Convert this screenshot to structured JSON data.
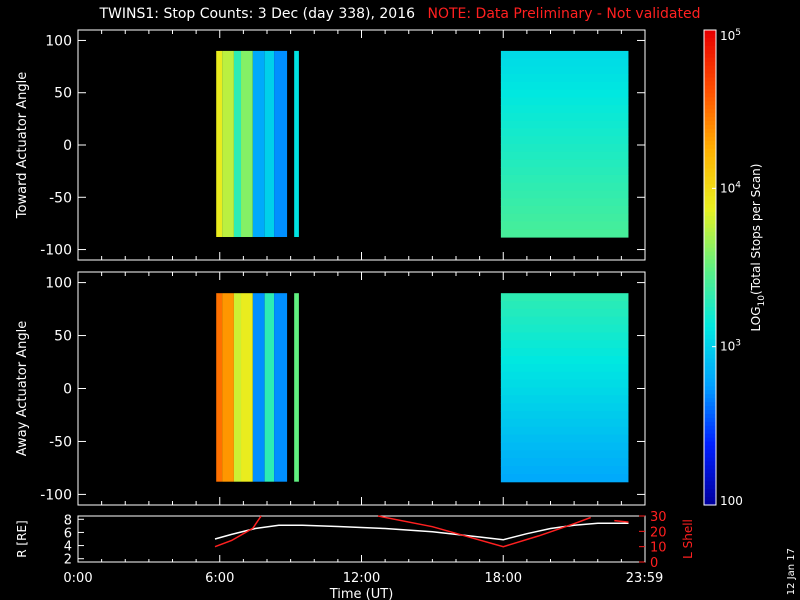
{
  "header": {
    "title": "TWINS1: Stop Counts:  3 Dec (day 338), 2016",
    "note": "NOTE: Data Preliminary - Not validated",
    "note_color": "#ff2020"
  },
  "footer": {
    "date_stamp": "12 Jan 17"
  },
  "chart_data": [
    {
      "type": "heatmap",
      "panel": "toward",
      "ylabel": "Toward Actuator Angle",
      "yticks": [
        100,
        50,
        0,
        -50,
        -100
      ],
      "ylim": [
        -110,
        110
      ],
      "xlim": [
        0,
        24
      ],
      "data_y_range": [
        -88,
        90
      ],
      "segments_utc_hours": [
        [
          5.85,
          8.85
        ],
        [
          9.15,
          9.35
        ],
        [
          17.9,
          23.3
        ]
      ],
      "columns_log10": [
        {
          "x": [
            5.85,
            6.1
          ],
          "v": 3.9
        },
        {
          "x": [
            6.1,
            6.6
          ],
          "v": 3.75
        },
        {
          "x": [
            6.6,
            6.9
          ],
          "v": 3.3
        },
        {
          "x": [
            6.9,
            7.4
          ],
          "v": 3.6
        },
        {
          "x": [
            7.4,
            7.9
          ],
          "v": 2.8
        },
        {
          "x": [
            7.9,
            8.3
          ],
          "v": 3.0
        },
        {
          "x": [
            8.3,
            8.85
          ],
          "v": 2.7
        },
        {
          "x": [
            9.15,
            9.35
          ],
          "v": 3.1
        },
        {
          "x": [
            17.9,
            23.3
          ],
          "v": 3.2
        }
      ]
    },
    {
      "type": "heatmap",
      "panel": "away",
      "ylabel": "Away Actuator Angle",
      "yticks": [
        100,
        50,
        0,
        -50,
        -100
      ],
      "ylim": [
        -110,
        110
      ],
      "xlim": [
        0,
        24
      ],
      "data_y_range": [
        -88,
        90
      ],
      "segments_utc_hours": [
        [
          5.85,
          8.85
        ],
        [
          9.15,
          9.35
        ],
        [
          17.9,
          23.3
        ]
      ],
      "columns_log10": [
        {
          "x": [
            5.85,
            6.1
          ],
          "v": 4.5
        },
        {
          "x": [
            6.1,
            6.6
          ],
          "v": 4.35
        },
        {
          "x": [
            6.6,
            6.9
          ],
          "v": 3.8
        },
        {
          "x": [
            6.9,
            7.4
          ],
          "v": 3.9
        },
        {
          "x": [
            7.4,
            7.9
          ],
          "v": 2.7
        },
        {
          "x": [
            7.9,
            8.3
          ],
          "v": 3.3
        },
        {
          "x": [
            8.3,
            8.85
          ],
          "v": 2.7
        },
        {
          "x": [
            9.15,
            9.35
          ],
          "v": 3.5
        },
        {
          "x": [
            17.9,
            23.3
          ],
          "v": 2.9
        }
      ]
    },
    {
      "type": "line",
      "panel": "orbit",
      "ylabel": "R [RE]",
      "y2label": "L Shell",
      "xlabel": "Time (UT)",
      "xticks": [
        "0:00",
        "6:00",
        "12:00",
        "18:00",
        "23:59"
      ],
      "xtick_hours": [
        0,
        6,
        12,
        18,
        23.98
      ],
      "ylim": [
        1.5,
        8.5
      ],
      "yticks": [
        2,
        4,
        6,
        8
      ],
      "y2lim": [
        0,
        30
      ],
      "y2ticks": [
        0,
        10,
        20,
        30
      ],
      "series": [
        {
          "axis": "left",
          "color": "#ffffff",
          "x": [
            5.8,
            6.5,
            7.5,
            8.5,
            9.5,
            11,
            13,
            15,
            17,
            18,
            19,
            20,
            21,
            22,
            23.3
          ],
          "y": [
            5.0,
            5.7,
            6.6,
            7.1,
            7.1,
            6.9,
            6.6,
            6.1,
            5.3,
            4.9,
            5.8,
            6.6,
            7.1,
            7.4,
            7.4
          ]
        },
        {
          "axis": "right",
          "color": "#ff2020",
          "x": [
            5.8,
            6.5,
            7.4,
            7.75,
            null,
            12.7,
            15,
            18.0,
            19.5,
            21,
            21.7,
            null,
            22.7,
            23.3
          ],
          "y": [
            10,
            14,
            22,
            30,
            null,
            30,
            23,
            10,
            17,
            25,
            29,
            null,
            27,
            26
          ]
        }
      ]
    }
  ],
  "colorbar": {
    "label": "LOG10(Total Stops per Scan)",
    "label_main": "LOG",
    "label_sub": "10",
    "label_rest": "(Total Stops per Scan)",
    "range_log10": [
      2,
      5
    ],
    "ticks": [
      {
        "v": 5,
        "text_main": "10",
        "text_exp": "5"
      },
      {
        "v": 4,
        "text_main": "10",
        "text_exp": "4"
      },
      {
        "v": 3,
        "text_main": "10",
        "text_exp": "3"
      },
      {
        "v": 2,
        "text_main": "100",
        "text_exp": ""
      }
    ],
    "colors": [
      "#0000a0",
      "#0020ff",
      "#00a0ff",
      "#00e8e0",
      "#60f080",
      "#e8f020",
      "#ffb000",
      "#ff5000",
      "#e80000"
    ]
  }
}
